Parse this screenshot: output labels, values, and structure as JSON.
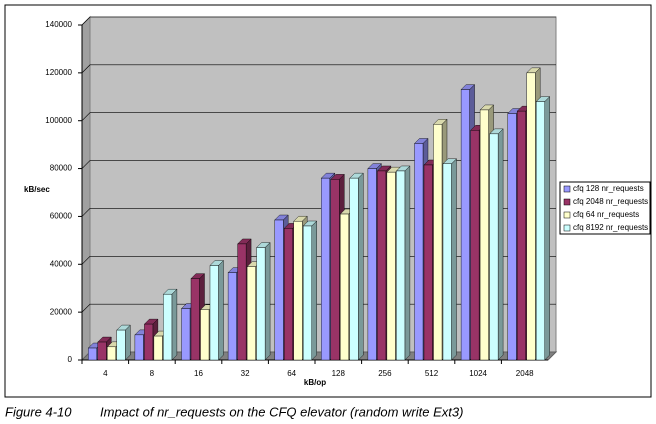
{
  "chart_data": {
    "type": "bar3d",
    "caption_label": "Figure 4-10",
    "caption": "Impact of nr_requests on the CFQ elevator (random write Ext3)",
    "x_label": "kB/op",
    "y_label": "kB/sec",
    "categories": [
      "4",
      "8",
      "16",
      "32",
      "64",
      "128",
      "256",
      "512",
      "1024",
      "2048"
    ],
    "series": [
      {
        "name": "cfq 128 nr_requests",
        "color": "#9999ff",
        "values": [
          5000,
          10500,
          21500,
          36500,
          58500,
          76000,
          80000,
          90500,
          113000,
          103000
        ]
      },
      {
        "name": "cfq 2048 nr_requests",
        "color": "#993366",
        "values": [
          7500,
          15000,
          34000,
          48500,
          55000,
          75500,
          79000,
          81500,
          96000,
          104000
        ]
      },
      {
        "name": "cfq 64 nr_requests",
        "color": "#ffffcc",
        "values": [
          5500,
          10000,
          21000,
          39000,
          58000,
          61000,
          78500,
          98500,
          104500,
          120000
        ]
      },
      {
        "name": "cfq 8192 nr_requests",
        "color": "#ccffff",
        "values": [
          12500,
          27500,
          39500,
          47000,
          56000,
          76000,
          79000,
          82000,
          94500,
          108000
        ]
      }
    ],
    "ylim": [
      0,
      140000
    ],
    "yticks": [
      0,
      20000,
      40000,
      60000,
      80000,
      100000,
      120000,
      140000
    ],
    "grid": true,
    "legend": "right"
  }
}
